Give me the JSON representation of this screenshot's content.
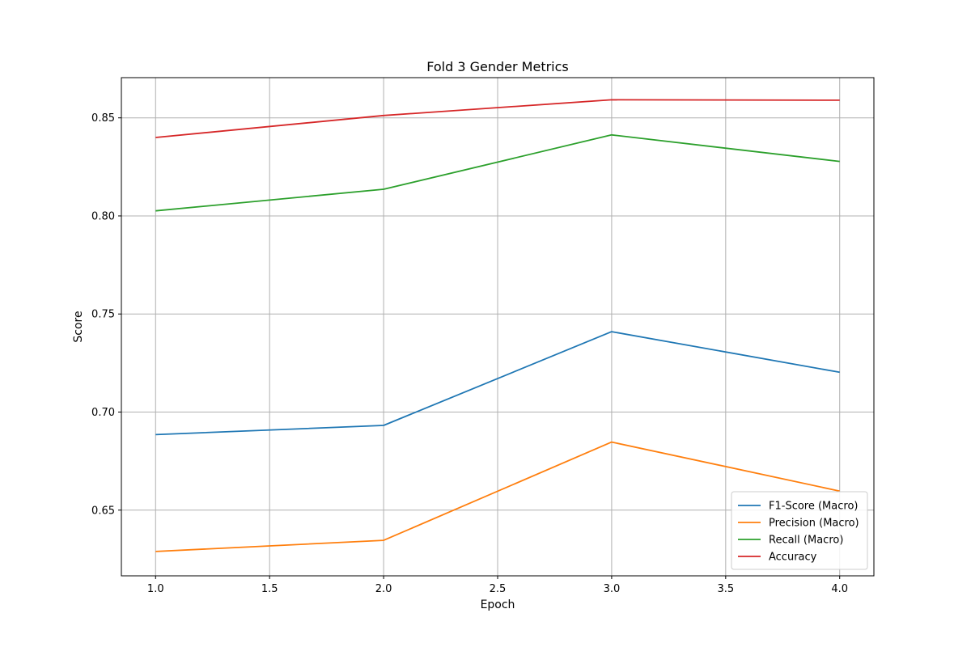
{
  "chart_data": {
    "type": "line",
    "title": "Fold 3 Gender Metrics",
    "xlabel": "Epoch",
    "ylabel": "Score",
    "xlim": [
      0.85,
      4.15
    ],
    "ylim": [
      0.6165,
      0.8705
    ],
    "x": [
      1.0,
      2.0,
      3.0,
      4.0
    ],
    "xticks": [
      1.0,
      1.5,
      2.0,
      2.5,
      3.0,
      3.5,
      4.0
    ],
    "xtick_labels": [
      "1.0",
      "1.5",
      "2.0",
      "2.5",
      "3.0",
      "3.5",
      "4.0"
    ],
    "yticks": [
      0.65,
      0.7,
      0.75,
      0.8,
      0.85
    ],
    "ytick_labels": [
      "0.65",
      "0.70",
      "0.75",
      "0.80",
      "0.85"
    ],
    "grid": true,
    "legend_position": "lower-right",
    "series": [
      {
        "name": "F1-Score (Macro)",
        "color": "#1f77b4",
        "values": [
          0.6885,
          0.6932,
          0.741,
          0.7203
        ]
      },
      {
        "name": "Precision (Macro)",
        "color": "#ff7f0e",
        "values": [
          0.6289,
          0.6346,
          0.6847,
          0.6597
        ]
      },
      {
        "name": "Recall (Macro)",
        "color": "#2ca02c",
        "values": [
          0.8026,
          0.8136,
          0.8413,
          0.8278
        ]
      },
      {
        "name": "Accuracy",
        "color": "#d62728",
        "values": [
          0.84,
          0.8512,
          0.8592,
          0.859
        ]
      }
    ]
  }
}
